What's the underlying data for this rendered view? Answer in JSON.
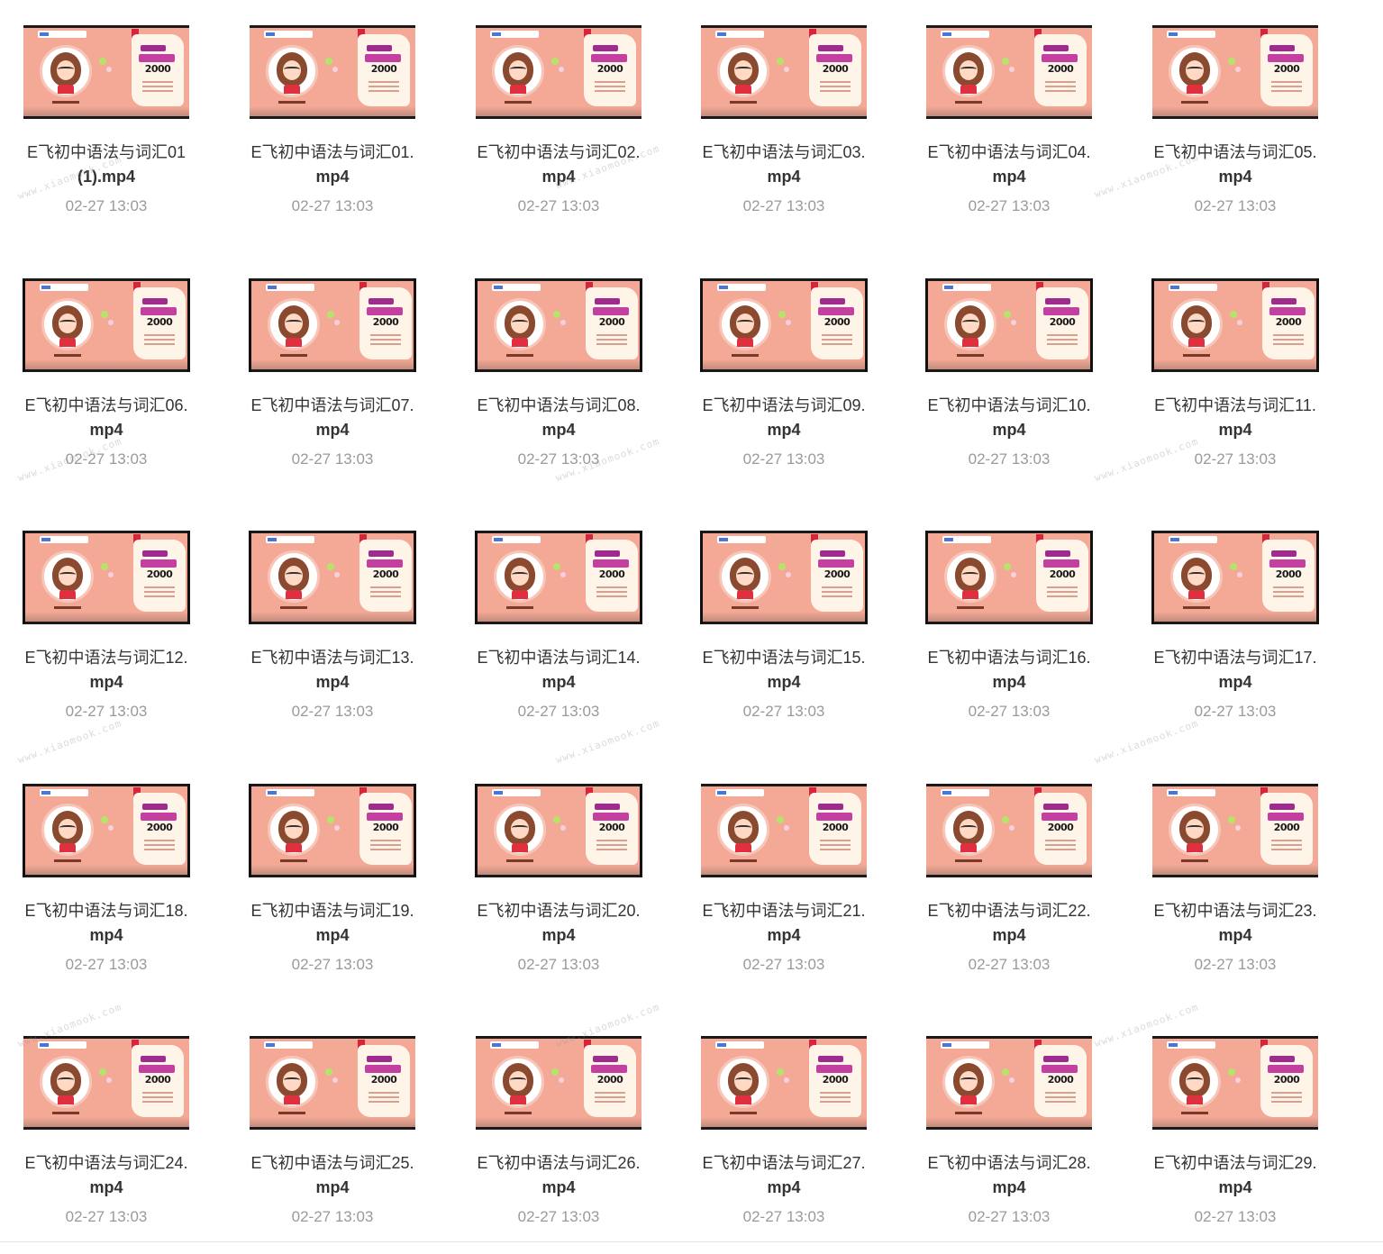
{
  "watermark_text": "www.xiaomook.com",
  "thumbnail": {
    "number_text": "2000"
  },
  "files": [
    {
      "name_line1": "E飞初中语法与词汇01",
      "name_line2": "(1).mp4",
      "date": "02-27 13:03"
    },
    {
      "name_line1": "E飞初中语法与词汇01.",
      "name_line2": "mp4",
      "date": "02-27 13:03"
    },
    {
      "name_line1": "E飞初中语法与词汇02.",
      "name_line2": "mp4",
      "date": "02-27 13:03"
    },
    {
      "name_line1": "E飞初中语法与词汇03.",
      "name_line2": "mp4",
      "date": "02-27 13:03"
    },
    {
      "name_line1": "E飞初中语法与词汇04.",
      "name_line2": "mp4",
      "date": "02-27 13:03"
    },
    {
      "name_line1": "E飞初中语法与词汇05.",
      "name_line2": "mp4",
      "date": "02-27 13:03"
    },
    {
      "name_line1": "E飞初中语法与词汇06.",
      "name_line2": "mp4",
      "date": "02-27 13:03"
    },
    {
      "name_line1": "E飞初中语法与词汇07.",
      "name_line2": "mp4",
      "date": "02-27 13:03"
    },
    {
      "name_line1": "E飞初中语法与词汇08.",
      "name_line2": "mp4",
      "date": "02-27 13:03"
    },
    {
      "name_line1": "E飞初中语法与词汇09.",
      "name_line2": "mp4",
      "date": "02-27 13:03"
    },
    {
      "name_line1": "E飞初中语法与词汇10.",
      "name_line2": "mp4",
      "date": "02-27 13:03"
    },
    {
      "name_line1": "E飞初中语法与词汇11.",
      "name_line2": "mp4",
      "date": "02-27 13:03"
    },
    {
      "name_line1": "E飞初中语法与词汇12.",
      "name_line2": "mp4",
      "date": "02-27 13:03"
    },
    {
      "name_line1": "E飞初中语法与词汇13.",
      "name_line2": "mp4",
      "date": "02-27 13:03"
    },
    {
      "name_line1": "E飞初中语法与词汇14.",
      "name_line2": "mp4",
      "date": "02-27 13:03"
    },
    {
      "name_line1": "E飞初中语法与词汇15.",
      "name_line2": "mp4",
      "date": "02-27 13:03"
    },
    {
      "name_line1": "E飞初中语法与词汇16.",
      "name_line2": "mp4",
      "date": "02-27 13:03"
    },
    {
      "name_line1": "E飞初中语法与词汇17.",
      "name_line2": "mp4",
      "date": "02-27 13:03"
    },
    {
      "name_line1": "E飞初中语法与词汇18.",
      "name_line2": "mp4",
      "date": "02-27 13:03"
    },
    {
      "name_line1": "E飞初中语法与词汇19.",
      "name_line2": "mp4",
      "date": "02-27 13:03"
    },
    {
      "name_line1": "E飞初中语法与词汇20.",
      "name_line2": "mp4",
      "date": "02-27 13:03"
    },
    {
      "name_line1": "E飞初中语法与词汇21.",
      "name_line2": "mp4",
      "date": "02-27 13:03"
    },
    {
      "name_line1": "E飞初中语法与词汇22.",
      "name_line2": "mp4",
      "date": "02-27 13:03"
    },
    {
      "name_line1": "E飞初中语法与词汇23.",
      "name_line2": "mp4",
      "date": "02-27 13:03"
    },
    {
      "name_line1": "E飞初中语法与词汇24.",
      "name_line2": "mp4",
      "date": "02-27 13:03"
    },
    {
      "name_line1": "E飞初中语法与词汇25.",
      "name_line2": "mp4",
      "date": "02-27 13:03"
    },
    {
      "name_line1": "E飞初中语法与词汇26.",
      "name_line2": "mp4",
      "date": "02-27 13:03"
    },
    {
      "name_line1": "E飞初中语法与词汇27.",
      "name_line2": "mp4",
      "date": "02-27 13:03"
    },
    {
      "name_line1": "E飞初中语法与词汇28.",
      "name_line2": "mp4",
      "date": "02-27 13:03"
    },
    {
      "name_line1": "E飞初中语法与词汇29.",
      "name_line2": "mp4",
      "date": "02-27 13:03"
    }
  ]
}
